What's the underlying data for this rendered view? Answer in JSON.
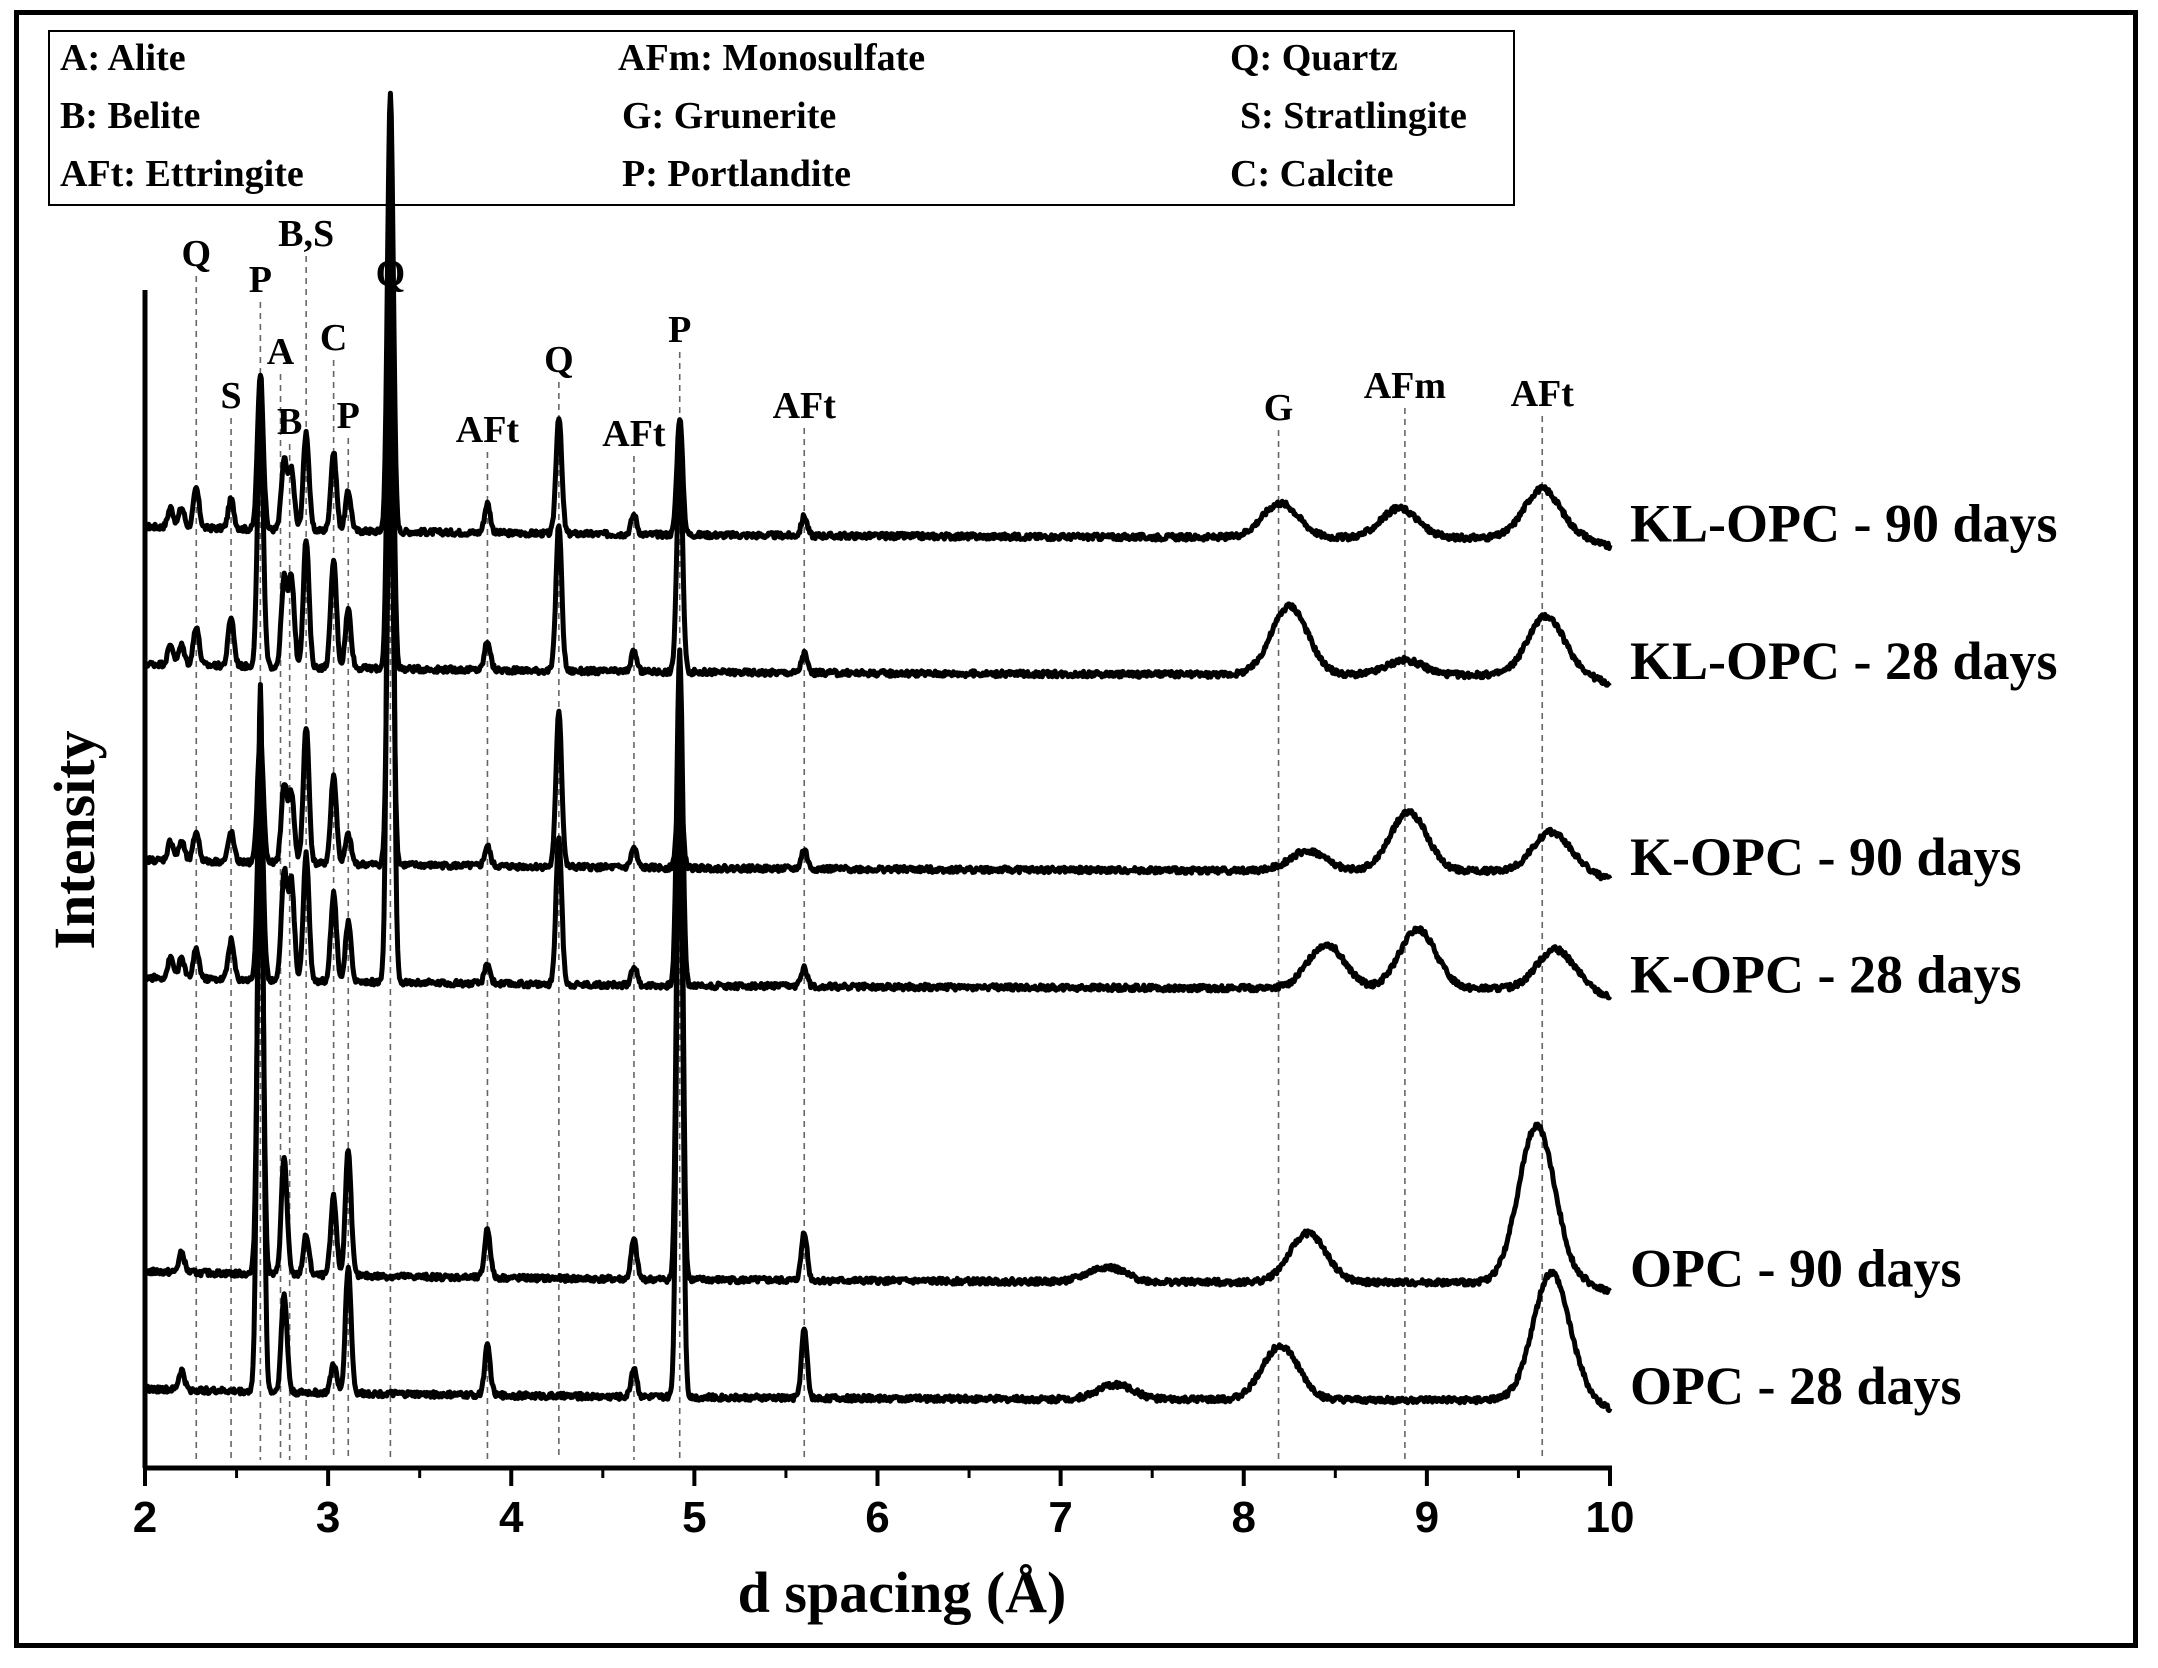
{
  "legend": {
    "col1": [
      "A: Alite",
      "B: Belite",
      "AFt: Ettringite"
    ],
    "col2": [
      "AFm: Monosulfate",
      "G: Grunerite",
      "P: Portlandite"
    ],
    "col3": [
      "Q: Quartz",
      "S: Stratlingite",
      "C: Calcite"
    ]
  },
  "chart_data": {
    "type": "line",
    "xlabel": "d spacing (Å)",
    "ylabel": "Intensity",
    "xlim": [
      2,
      10
    ],
    "xticks": [
      2,
      3,
      4,
      5,
      6,
      7,
      8,
      9,
      10
    ],
    "grid": false,
    "phase_markers": [
      {
        "label": "Q",
        "d": 2.28
      },
      {
        "label": "S",
        "d": 2.47
      },
      {
        "label": "P",
        "d": 2.63
      },
      {
        "label": "A",
        "d": 2.74
      },
      {
        "label": "B",
        "d": 2.79
      },
      {
        "label": "B,S",
        "d": 2.88
      },
      {
        "label": "C",
        "d": 3.03
      },
      {
        "label": "P",
        "d": 3.11
      },
      {
        "label": "Q",
        "d": 3.34
      },
      {
        "label": "AFt",
        "d": 3.87
      },
      {
        "label": "Q",
        "d": 4.26
      },
      {
        "label": "AFt",
        "d": 4.67
      },
      {
        "label": "P",
        "d": 4.92
      },
      {
        "label": "AFt",
        "d": 5.6
      },
      {
        "label": "G",
        "d": 8.19
      },
      {
        "label": "AFm",
        "d": 8.88
      },
      {
        "label": "AFt",
        "d": 9.63
      }
    ],
    "series": [
      {
        "name": "KL-OPC - 90 days",
        "baseline": 0.92,
        "peaks": [
          [
            2.14,
            0.02
          ],
          [
            2.2,
            0.02
          ],
          [
            2.28,
            0.04
          ],
          [
            2.47,
            0.03
          ],
          [
            2.63,
            0.16
          ],
          [
            2.76,
            0.07
          ],
          [
            2.8,
            0.06
          ],
          [
            2.88,
            0.1
          ],
          [
            3.03,
            0.08
          ],
          [
            3.11,
            0.04
          ],
          [
            3.34,
            0.45
          ],
          [
            3.87,
            0.03
          ],
          [
            4.26,
            0.12
          ],
          [
            4.67,
            0.02
          ],
          [
            4.92,
            0.12
          ],
          [
            5.6,
            0.02
          ]
        ],
        "humps": [
          [
            8.2,
            0.035
          ],
          [
            8.85,
            0.03
          ],
          [
            9.63,
            0.05
          ]
        ]
      },
      {
        "name": "KL-OPC - 28 days",
        "baseline": 0.78,
        "peaks": [
          [
            2.14,
            0.02
          ],
          [
            2.2,
            0.02
          ],
          [
            2.28,
            0.04
          ],
          [
            2.47,
            0.05
          ],
          [
            2.63,
            0.26
          ],
          [
            2.76,
            0.09
          ],
          [
            2.8,
            0.09
          ],
          [
            2.88,
            0.13
          ],
          [
            3.03,
            0.11
          ],
          [
            3.11,
            0.06
          ],
          [
            3.34,
            0.45
          ],
          [
            3.87,
            0.03
          ],
          [
            4.26,
            0.15
          ],
          [
            4.67,
            0.02
          ],
          [
            4.92,
            0.22
          ],
          [
            5.6,
            0.02
          ]
        ],
        "humps": [
          [
            8.25,
            0.07
          ],
          [
            8.88,
            0.015
          ],
          [
            9.65,
            0.06
          ]
        ]
      },
      {
        "name": "K-OPC - 90 days",
        "baseline": 0.58,
        "peaks": [
          [
            2.14,
            0.02
          ],
          [
            2.2,
            0.02
          ],
          [
            2.28,
            0.03
          ],
          [
            2.47,
            0.03
          ],
          [
            2.63,
            0.13
          ],
          [
            2.76,
            0.08
          ],
          [
            2.8,
            0.07
          ],
          [
            2.88,
            0.14
          ],
          [
            3.03,
            0.09
          ],
          [
            3.11,
            0.03
          ],
          [
            3.34,
            0.45
          ],
          [
            3.87,
            0.02
          ],
          [
            4.26,
            0.16
          ],
          [
            4.67,
            0.02
          ],
          [
            4.92,
            0.09
          ],
          [
            5.6,
            0.02
          ]
        ],
        "humps": [
          [
            8.35,
            0.02
          ],
          [
            8.9,
            0.06
          ],
          [
            9.68,
            0.04
          ]
        ]
      },
      {
        "name": "K-OPC - 28 days",
        "baseline": 0.46,
        "peaks": [
          [
            2.14,
            0.02
          ],
          [
            2.2,
            0.02
          ],
          [
            2.28,
            0.03
          ],
          [
            2.47,
            0.04
          ],
          [
            2.63,
            0.2
          ],
          [
            2.76,
            0.11
          ],
          [
            2.8,
            0.1
          ],
          [
            2.88,
            0.13
          ],
          [
            3.03,
            0.09
          ],
          [
            3.11,
            0.06
          ],
          [
            3.34,
            0.85
          ],
          [
            3.87,
            0.02
          ],
          [
            4.26,
            0.15
          ],
          [
            4.67,
            0.02
          ],
          [
            4.92,
            0.34
          ],
          [
            5.6,
            0.02
          ]
        ],
        "humps": [
          [
            8.45,
            0.045
          ],
          [
            8.95,
            0.06
          ],
          [
            9.7,
            0.04
          ]
        ]
      },
      {
        "name": "OPC - 90 days",
        "baseline": 0.16,
        "peaks": [
          [
            2.2,
            0.02
          ],
          [
            2.63,
            0.48
          ],
          [
            2.76,
            0.12
          ],
          [
            2.88,
            0.04
          ],
          [
            3.03,
            0.08
          ],
          [
            3.11,
            0.13
          ],
          [
            3.87,
            0.05
          ],
          [
            4.67,
            0.04
          ],
          [
            4.92,
            0.62
          ],
          [
            5.6,
            0.05
          ]
        ],
        "humps": [
          [
            7.25,
            0.015
          ],
          [
            8.35,
            0.05
          ],
          [
            9.6,
            0.16
          ]
        ]
      },
      {
        "name": "OPC - 28 days",
        "baseline": 0.04,
        "peaks": [
          [
            2.2,
            0.02
          ],
          [
            2.63,
            0.72
          ],
          [
            2.76,
            0.1
          ],
          [
            3.03,
            0.03
          ],
          [
            3.11,
            0.13
          ],
          [
            3.87,
            0.05
          ],
          [
            4.67,
            0.03
          ],
          [
            4.92,
            0.7
          ],
          [
            5.6,
            0.07
          ]
        ],
        "humps": [
          [
            7.3,
            0.015
          ],
          [
            8.2,
            0.055
          ],
          [
            9.68,
            0.13
          ]
        ]
      }
    ]
  }
}
